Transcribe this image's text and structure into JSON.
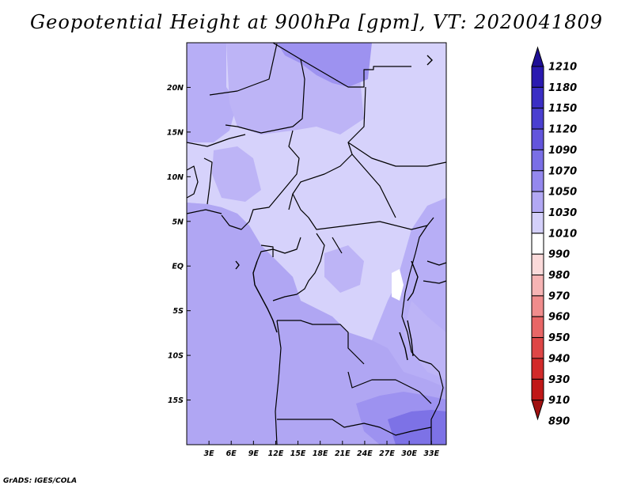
{
  "title": "Geopotential Height at 900hPa [gpm], VT: 2020041809",
  "credit": "GrADS: IGES/COLA",
  "map": {
    "lat_ticks": [
      "20N",
      "15N",
      "10N",
      "5N",
      "EQ",
      "5S",
      "10S",
      "15S"
    ],
    "lon_ticks": [
      "3E",
      "6E",
      "9E",
      "12E",
      "15E",
      "18E",
      "21E",
      "24E",
      "27E",
      "30E",
      "33E"
    ],
    "lat_values": [
      20,
      15,
      10,
      5,
      0,
      -5,
      -10,
      -15
    ],
    "lon_values": [
      3,
      6,
      9,
      12,
      15,
      18,
      21,
      24,
      27,
      30,
      33
    ],
    "extent": {
      "lon_min": 0,
      "lon_max": 35,
      "lat_min": -20,
      "lat_max": 25
    }
  },
  "colorbar": {
    "labels": [
      "1210",
      "1180",
      "1150",
      "1120",
      "1090",
      "1070",
      "1050",
      "1030",
      "1010",
      "990",
      "980",
      "970",
      "960",
      "950",
      "940",
      "930",
      "910",
      "890"
    ],
    "colors": [
      "#1e0f96",
      "#2a1ab0",
      "#3a2ec4",
      "#4a3fd0",
      "#6355dc",
      "#7a6fe6",
      "#9488ee",
      "#b2a8f4",
      "#d4d0fa",
      "#ffffff",
      "#fbdada",
      "#f6b4b4",
      "#f08c8c",
      "#e86666",
      "#de4646",
      "#d22a2a",
      "#c01818",
      "#a01010"
    ]
  }
}
